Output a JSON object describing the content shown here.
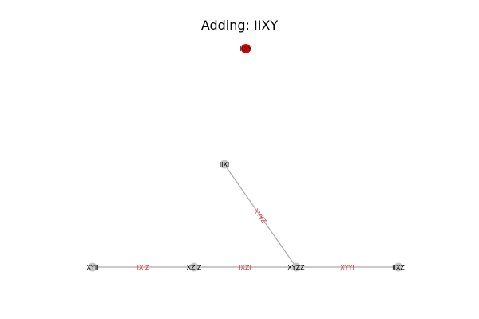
{
  "title": "Adding: IIXY",
  "colors": {
    "node": "#c8c8c8",
    "highlight_node": "#dd0000",
    "edge": "#aaaaaa",
    "edge_label": "#e03030"
  },
  "nodes": [
    {
      "id": "IIXY",
      "highlight": true
    },
    {
      "id": "IIXI",
      "highlight": false
    },
    {
      "id": "XYII",
      "highlight": false
    },
    {
      "id": "XZIZ",
      "highlight": false
    },
    {
      "id": "XYZZ",
      "highlight": false
    },
    {
      "id": "IIXZ",
      "highlight": false
    }
  ],
  "edges": [
    {
      "source": "XYII",
      "target": "XZIZ",
      "label": "IXIZ"
    },
    {
      "source": "XZIZ",
      "target": "XYZZ",
      "label": "IXZI"
    },
    {
      "source": "XYZZ",
      "target": "IIXZ",
      "label": "XYYI"
    },
    {
      "source": "IIXI",
      "target": "XYZZ",
      "label": "XYYZ"
    }
  ]
}
